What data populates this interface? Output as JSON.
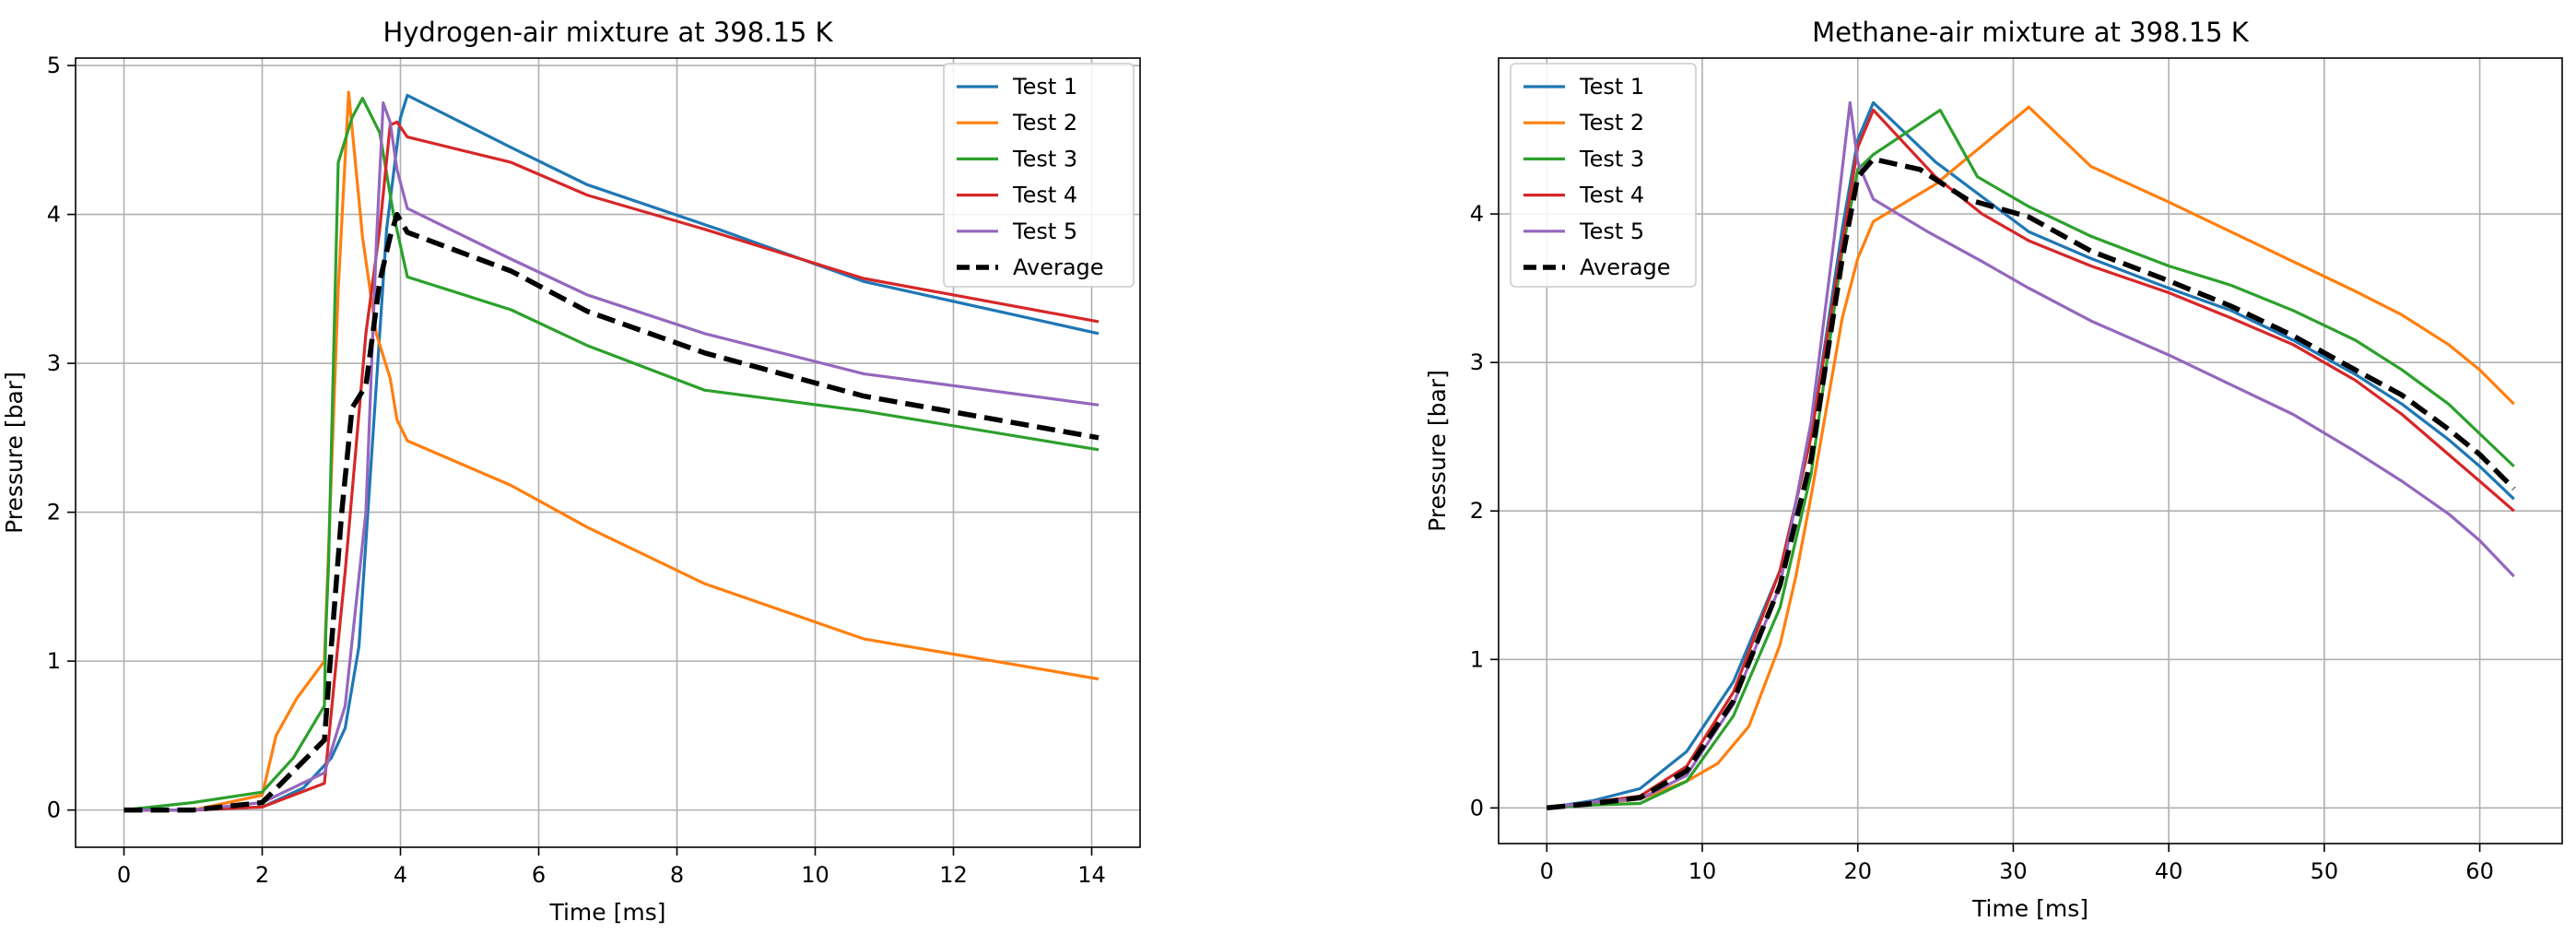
{
  "chart_data": [
    {
      "type": "line",
      "title": "Hydrogen-air mixture at 398.15 K",
      "xlabel": "Time [ms]",
      "ylabel": "Pressure [bar]",
      "xlim": [
        -0.7,
        14.7
      ],
      "ylim": [
        -0.25,
        5.05
      ],
      "xticks": [
        0,
        2,
        4,
        6,
        8,
        10,
        12,
        14
      ],
      "yticks": [
        0,
        1,
        2,
        3,
        4,
        5
      ],
      "grid": true,
      "legend_position": "upper right",
      "series": [
        {
          "name": "Test 1",
          "color": "#1f77b4",
          "dashed": false,
          "x": [
            0,
            1,
            2,
            2.6,
            3.0,
            3.2,
            3.4,
            3.6,
            3.8,
            4.0,
            4.1,
            5.6,
            6.7,
            8.6,
            10.7,
            14.1
          ],
          "y": [
            0,
            0,
            0.02,
            0.15,
            0.35,
            0.55,
            1.1,
            2.5,
            3.9,
            4.65,
            4.8,
            4.45,
            4.2,
            3.9,
            3.55,
            3.2
          ]
        },
        {
          "name": "Test 2",
          "color": "#ff7f0e",
          "dashed": false,
          "x": [
            0,
            1,
            2,
            2.2,
            2.5,
            2.9,
            3.1,
            3.25,
            3.45,
            3.65,
            3.85,
            3.95,
            4.1,
            5.6,
            6.7,
            8.4,
            10.7,
            14.1
          ],
          "y": [
            0,
            0,
            0.1,
            0.5,
            0.75,
            1.0,
            3.5,
            4.82,
            3.85,
            3.2,
            2.9,
            2.62,
            2.48,
            2.18,
            1.9,
            1.52,
            1.15,
            0.88
          ]
        },
        {
          "name": "Test 3",
          "color": "#2ca02c",
          "dashed": false,
          "x": [
            0,
            1,
            2,
            2.45,
            2.9,
            2.92,
            2.96,
            3.1,
            3.3,
            3.45,
            3.7,
            3.9,
            4.1,
            5.6,
            6.7,
            8.4,
            10.7,
            14.1
          ],
          "y": [
            0,
            0.05,
            0.12,
            0.35,
            0.7,
            1.2,
            1.65,
            4.35,
            4.65,
            4.78,
            4.55,
            4.0,
            3.58,
            3.36,
            3.12,
            2.82,
            2.68,
            2.42
          ]
        },
        {
          "name": "Test 4",
          "color": "#d62728",
          "dashed": false,
          "x": [
            0,
            1,
            2,
            2.9,
            3.05,
            3.2,
            3.35,
            3.5,
            3.7,
            3.85,
            3.95,
            4.1,
            5.6,
            6.7,
            8.4,
            10.7,
            14.1
          ],
          "y": [
            0,
            0,
            0.02,
            0.18,
            0.9,
            1.6,
            2.4,
            3.2,
            3.9,
            4.6,
            4.62,
            4.52,
            4.35,
            4.13,
            3.9,
            3.57,
            3.28
          ]
        },
        {
          "name": "Test 5",
          "color": "#9467bd",
          "dashed": false,
          "x": [
            0,
            1,
            2,
            2.9,
            3.2,
            3.5,
            3.65,
            3.75,
            3.85,
            3.95,
            4.1,
            5.6,
            6.7,
            8.4,
            10.7,
            14.1
          ],
          "y": [
            0,
            0,
            0.05,
            0.25,
            0.7,
            2.0,
            3.8,
            4.75,
            4.62,
            4.3,
            4.04,
            3.7,
            3.46,
            3.2,
            2.93,
            2.72
          ]
        },
        {
          "name": "Average",
          "color": "#000000",
          "dashed": true,
          "x": [
            0,
            1,
            2,
            2.9,
            3.0,
            3.15,
            3.3,
            3.5,
            3.7,
            3.85,
            3.95,
            4.1,
            5.6,
            6.7,
            8.4,
            10.7,
            14.1
          ],
          "y": [
            0,
            0,
            0.05,
            0.47,
            1.1,
            2.0,
            2.7,
            2.85,
            3.55,
            3.85,
            4.0,
            3.88,
            3.62,
            3.35,
            3.07,
            2.78,
            2.5
          ]
        }
      ]
    },
    {
      "type": "line",
      "title": "Methane-air mixture at 398.15 K",
      "xlabel": "Time [ms]",
      "ylabel": "Pressure [bar]",
      "xlim": [
        -3.1,
        65.3
      ],
      "ylim": [
        -0.24,
        5.05
      ],
      "xticks": [
        0,
        10,
        20,
        30,
        40,
        50,
        60
      ],
      "yticks": [
        0,
        1,
        2,
        3,
        4
      ],
      "grid": true,
      "legend_position": "upper left",
      "series": [
        {
          "name": "Test 1",
          "color": "#1f77b4",
          "dashed": false,
          "x": [
            0,
            3,
            6,
            9,
            12,
            15,
            17,
            19,
            20,
            21,
            25,
            31,
            35,
            40,
            44,
            48,
            52,
            55,
            58,
            60,
            62.2
          ],
          "y": [
            0,
            0.05,
            0.13,
            0.38,
            0.85,
            1.6,
            2.5,
            3.9,
            4.5,
            4.75,
            4.35,
            3.88,
            3.7,
            3.5,
            3.35,
            3.15,
            2.92,
            2.72,
            2.48,
            2.3,
            2.08
          ]
        },
        {
          "name": "Test 2",
          "color": "#ff7f0e",
          "dashed": false,
          "x": [
            0,
            3,
            6,
            9,
            11,
            13,
            15,
            16,
            17,
            18,
            19,
            20,
            21,
            25,
            31,
            35,
            40,
            44,
            48,
            52,
            55,
            58,
            60,
            62.2
          ],
          "y": [
            0,
            0.03,
            0.06,
            0.18,
            0.3,
            0.55,
            1.1,
            1.55,
            2.1,
            2.7,
            3.3,
            3.7,
            3.95,
            4.2,
            4.72,
            4.32,
            4.08,
            3.88,
            3.68,
            3.48,
            3.32,
            3.12,
            2.95,
            2.72
          ]
        },
        {
          "name": "Test 3",
          "color": "#2ca02c",
          "dashed": false,
          "x": [
            0,
            3,
            6,
            9,
            12,
            15,
            17,
            19,
            20,
            21,
            25.3,
            27.7,
            31,
            35,
            40,
            44,
            48,
            52,
            55,
            58,
            60,
            62.2
          ],
          "y": [
            0,
            0.02,
            0.03,
            0.18,
            0.62,
            1.35,
            2.25,
            3.75,
            4.3,
            4.4,
            4.7,
            4.25,
            4.05,
            3.85,
            3.65,
            3.52,
            3.35,
            3.15,
            2.95,
            2.72,
            2.52,
            2.3
          ]
        },
        {
          "name": "Test 4",
          "color": "#d62728",
          "dashed": false,
          "x": [
            0,
            3,
            6,
            9,
            12,
            15,
            17,
            19,
            20,
            21,
            25,
            28,
            31,
            35,
            40,
            44,
            48,
            52,
            55,
            58,
            60,
            62.2
          ],
          "y": [
            0,
            0.04,
            0.08,
            0.28,
            0.78,
            1.6,
            2.5,
            3.8,
            4.45,
            4.7,
            4.25,
            4.0,
            3.82,
            3.65,
            3.47,
            3.3,
            3.12,
            2.88,
            2.65,
            2.38,
            2.2,
            2.0
          ]
        },
        {
          "name": "Test 5",
          "color": "#9467bd",
          "dashed": false,
          "x": [
            0,
            3,
            6,
            9,
            12,
            15,
            17,
            18.5,
            19.5,
            20,
            21,
            24.5,
            28,
            31,
            35,
            40,
            44,
            48,
            52,
            55,
            58,
            60,
            62.2
          ],
          "y": [
            0,
            0.04,
            0.06,
            0.22,
            0.7,
            1.5,
            2.6,
            3.85,
            4.75,
            4.35,
            4.1,
            3.88,
            3.68,
            3.5,
            3.28,
            3.05,
            2.85,
            2.65,
            2.4,
            2.2,
            1.98,
            1.8,
            1.56
          ]
        },
        {
          "name": "Average",
          "color": "#000000",
          "dashed": true,
          "x": [
            0,
            3,
            6,
            9,
            12,
            15,
            17,
            19,
            20,
            21,
            24,
            27,
            31,
            35,
            40,
            44,
            48,
            52,
            55,
            58,
            60,
            62.2
          ],
          "y": [
            0,
            0.03,
            0.07,
            0.25,
            0.72,
            1.5,
            2.35,
            3.7,
            4.25,
            4.37,
            4.3,
            4.1,
            3.98,
            3.75,
            3.55,
            3.38,
            3.18,
            2.95,
            2.78,
            2.55,
            2.38,
            2.15
          ]
        }
      ]
    }
  ]
}
